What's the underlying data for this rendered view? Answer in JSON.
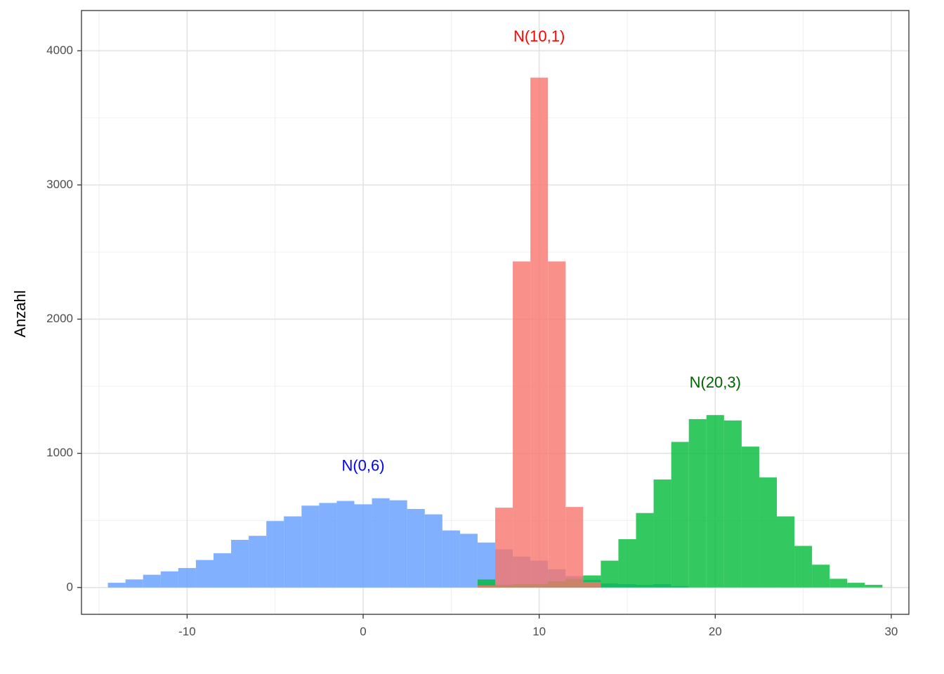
{
  "chart_data": {
    "type": "bar",
    "subtype": "overlapping-histogram",
    "title": "",
    "xlabel": "",
    "ylabel": "Anzahl",
    "xlim": [
      -16,
      31
    ],
    "ylim": [
      -200,
      4300
    ],
    "x_ticks": [
      -10,
      0,
      10,
      20,
      30
    ],
    "x_tick_labels": [
      "-10",
      "0",
      "10",
      "20",
      "30"
    ],
    "y_ticks": [
      0,
      1000,
      2000,
      3000,
      4000
    ],
    "y_tick_labels": [
      "0",
      "1000",
      "2000",
      "3000",
      "4000"
    ],
    "grid": true,
    "legend": "none",
    "bin_width": 1,
    "series": [
      {
        "label": "N(0,6)",
        "color": "#619CFF",
        "label_color": "#0000FF",
        "label_x": 0,
        "label_y": 900,
        "bins": [
          {
            "x": -14,
            "count": 35
          },
          {
            "x": -13,
            "count": 60
          },
          {
            "x": -12,
            "count": 95
          },
          {
            "x": -11,
            "count": 120
          },
          {
            "x": -10,
            "count": 145
          },
          {
            "x": -9,
            "count": 205
          },
          {
            "x": -8,
            "count": 255
          },
          {
            "x": -7,
            "count": 355
          },
          {
            "x": -6,
            "count": 385
          },
          {
            "x": -5,
            "count": 495
          },
          {
            "x": -4,
            "count": 530
          },
          {
            "x": -3,
            "count": 610
          },
          {
            "x": -2,
            "count": 630
          },
          {
            "x": -1,
            "count": 645
          },
          {
            "x": 0,
            "count": 620
          },
          {
            "x": 1,
            "count": 665
          },
          {
            "x": 2,
            "count": 650
          },
          {
            "x": 3,
            "count": 585
          },
          {
            "x": 4,
            "count": 545
          },
          {
            "x": 5,
            "count": 425
          },
          {
            "x": 6,
            "count": 400
          },
          {
            "x": 7,
            "count": 335
          },
          {
            "x": 8,
            "count": 285
          },
          {
            "x": 9,
            "count": 230
          },
          {
            "x": 10,
            "count": 200
          },
          {
            "x": 11,
            "count": 135
          },
          {
            "x": 12,
            "count": 85
          },
          {
            "x": 13,
            "count": 55
          },
          {
            "x": 14,
            "count": 30
          },
          {
            "x": 15,
            "count": 25
          },
          {
            "x": 16,
            "count": 20
          },
          {
            "x": 17,
            "count": 25
          },
          {
            "x": 18,
            "count": 10
          }
        ]
      },
      {
        "label": "N(20,3)",
        "color": "#00BA38",
        "label_color": "#006400",
        "label_x": 20,
        "label_y": 1520,
        "bins": [
          {
            "x": 7,
            "count": 60
          },
          {
            "x": 8,
            "count": 20
          },
          {
            "x": 9,
            "count": 25
          },
          {
            "x": 10,
            "count": 25
          },
          {
            "x": 11,
            "count": 45
          },
          {
            "x": 12,
            "count": 65
          },
          {
            "x": 13,
            "count": 90
          },
          {
            "x": 14,
            "count": 200
          },
          {
            "x": 15,
            "count": 360
          },
          {
            "x": 16,
            "count": 555
          },
          {
            "x": 17,
            "count": 805
          },
          {
            "x": 18,
            "count": 1085
          },
          {
            "x": 19,
            "count": 1255
          },
          {
            "x": 20,
            "count": 1285
          },
          {
            "x": 21,
            "count": 1245
          },
          {
            "x": 22,
            "count": 1050
          },
          {
            "x": 23,
            "count": 820
          },
          {
            "x": 24,
            "count": 530
          },
          {
            "x": 25,
            "count": 310
          },
          {
            "x": 26,
            "count": 170
          },
          {
            "x": 27,
            "count": 65
          },
          {
            "x": 28,
            "count": 35
          },
          {
            "x": 29,
            "count": 20
          }
        ]
      },
      {
        "label": "N(10,1)",
        "color": "#F8766D",
        "label_color": "#FF0000",
        "label_x": 10,
        "label_y": 4100,
        "bins": [
          {
            "x": 7,
            "count": 15
          },
          {
            "x": 8,
            "count": 595
          },
          {
            "x": 9,
            "count": 2430
          },
          {
            "x": 10,
            "count": 3800
          },
          {
            "x": 11,
            "count": 2430
          },
          {
            "x": 12,
            "count": 600
          },
          {
            "x": 13,
            "count": 40
          }
        ]
      }
    ]
  }
}
